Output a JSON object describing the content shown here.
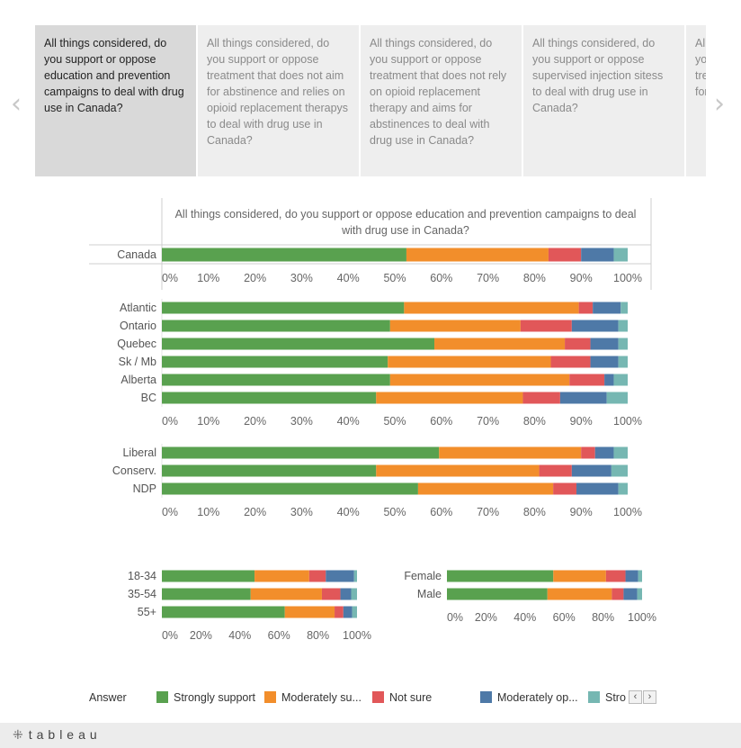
{
  "nav": {
    "prev_icon": "‹",
    "next_icon": "›"
  },
  "slides": [
    {
      "text": "All things considered, do you support or oppose education and prevention campaigns to deal with drug use in Canada?",
      "active": true
    },
    {
      "text": "All things considered, do you support or oppose treatment that does not aim for abstinence and relies on opioid replacement therapys to deal with drug use in Canada?",
      "active": false
    },
    {
      "text": "All things considered, do you support or oppose treatment that does not rely on opioid replacement therapy and aims for abstinences to deal with drug use in Canada?",
      "active": false
    },
    {
      "text": "All things considered, do you support or oppose supervised injection sitess to deal with drug use in Canada?",
      "active": false
    },
    {
      "text": "All things considered, do you support or oppose treatment that does not aim for abstinence...",
      "active": false
    }
  ],
  "chart_data": {
    "type": "bar",
    "orientation": "horizontal",
    "stacked": true,
    "title": "All things considered, do you support or oppose education and prevention campaigns to deal with drug use in Canada?",
    "xlim": [
      0,
      100
    ],
    "series_names": [
      "Strongly support",
      "Moderately support",
      "Not sure",
      "Moderately oppose",
      "Strongly oppose"
    ],
    "colors": [
      "#59a14f",
      "#f28e2b",
      "#e15759",
      "#4e79a7",
      "#76b7b2"
    ],
    "panels": [
      {
        "id": "canada",
        "ticks": [
          0,
          10,
          20,
          30,
          40,
          50,
          60,
          70,
          80,
          90,
          100
        ],
        "categories": [
          "Canada"
        ],
        "values": [
          [
            52.5,
            30.5,
            7.0,
            7.0,
            3.0
          ]
        ]
      },
      {
        "id": "region",
        "ticks": [
          0,
          10,
          20,
          30,
          40,
          50,
          60,
          70,
          80,
          90,
          100
        ],
        "categories": [
          "Atlantic",
          "Ontario",
          "Quebec",
          "Sk / Mb",
          "Alberta",
          "BC"
        ],
        "values": [
          [
            52.0,
            37.5,
            3.0,
            6.0,
            1.5
          ],
          [
            49.0,
            28.0,
            11.0,
            10.0,
            2.0
          ],
          [
            58.5,
            28.0,
            5.5,
            6.0,
            2.0
          ],
          [
            48.5,
            35.0,
            8.5,
            6.0,
            2.0
          ],
          [
            49.0,
            38.5,
            7.5,
            2.0,
            3.0
          ],
          [
            46.0,
            31.5,
            8.0,
            10.0,
            4.5
          ]
        ]
      },
      {
        "id": "party",
        "ticks": [
          0,
          10,
          20,
          30,
          40,
          50,
          60,
          70,
          80,
          90,
          100
        ],
        "categories": [
          "Liberal",
          "Conserv.",
          "NDP"
        ],
        "values": [
          [
            59.5,
            30.5,
            3.0,
            4.0,
            3.0
          ],
          [
            46.0,
            35.0,
            7.0,
            8.5,
            3.5
          ],
          [
            55.0,
            29.0,
            5.0,
            9.0,
            2.0
          ]
        ]
      },
      {
        "id": "age",
        "ticks": [
          0,
          20,
          40,
          60,
          80,
          100
        ],
        "categories": [
          "18-34",
          "35-54",
          "55+"
        ],
        "values": [
          [
            47.5,
            28.0,
            8.5,
            14.5,
            1.5
          ],
          [
            45.5,
            36.5,
            9.5,
            5.5,
            3.0
          ],
          [
            63.0,
            25.5,
            4.5,
            4.5,
            2.5
          ]
        ]
      },
      {
        "id": "gender",
        "ticks": [
          0,
          20,
          40,
          60,
          80,
          100
        ],
        "categories": [
          "Female",
          "Male"
        ],
        "values": [
          [
            54.5,
            27.0,
            10.0,
            6.5,
            2.0
          ],
          [
            51.5,
            33.0,
            6.0,
            7.0,
            2.5
          ]
        ]
      }
    ]
  },
  "legend": {
    "title": "Answer",
    "items": [
      {
        "label": "Strongly support",
        "color": "#59a14f"
      },
      {
        "label": "Moderately su...",
        "color": "#f28e2b"
      },
      {
        "label": "Not sure",
        "color": "#e15759"
      },
      {
        "label": "Moderately op...",
        "color": "#4e79a7"
      },
      {
        "label": "Stro",
        "color": "#76b7b2"
      }
    ],
    "scroll_left": "‹",
    "scroll_right": "›"
  },
  "footer": {
    "logo_mark": "⁜",
    "logo_text": "tableau"
  }
}
